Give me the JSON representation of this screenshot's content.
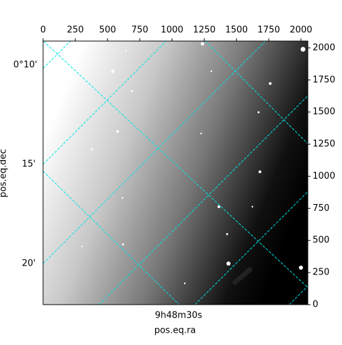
{
  "chart_data": {
    "type": "image",
    "xlabel": "pos.eq.ra",
    "ylabel": "pos.eq.dec",
    "xlim": [
      0,
      2053
    ],
    "xticks": [
      0,
      250,
      500,
      750,
      1000,
      1250,
      1500,
      1750,
      2000
    ],
    "ylim": [
      0,
      2053
    ],
    "yticks": [
      0,
      250,
      500,
      750,
      1000,
      1250,
      1500,
      1750,
      2000
    ],
    "dec_ticks": [
      "0°10'",
      "15'",
      "20'"
    ],
    "ra_ticks": [
      "9h48m30s"
    ],
    "grid_color": "#00e5e5",
    "cmap": "gray"
  }
}
